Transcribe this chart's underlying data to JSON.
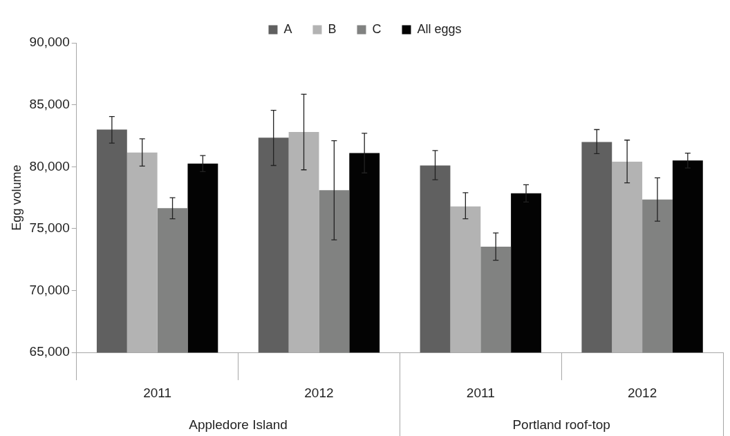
{
  "chart_data": {
    "type": "bar",
    "ylabel": "Egg volume",
    "categories": [
      "2011",
      "2012",
      "2011",
      "2012"
    ],
    "series": [
      {
        "name": "A",
        "color": "#606060",
        "values": [
          83000,
          82350,
          80100,
          82000
        ],
        "errors": [
          [
            81900,
            84050
          ],
          [
            80100,
            84550
          ],
          [
            78950,
            81300
          ],
          [
            81050,
            83000
          ]
        ]
      },
      {
        "name": "B",
        "color": "#b3b3b3",
        "values": [
          81150,
          82800,
          76800,
          80400
        ],
        "errors": [
          [
            80050,
            82250
          ],
          [
            79750,
            85850
          ],
          [
            75800,
            77900
          ],
          [
            78700,
            82150
          ]
        ]
      },
      {
        "name": "C",
        "color": "#818281",
        "values": [
          76650,
          78100,
          73550,
          77350
        ],
        "errors": [
          [
            75800,
            77500
          ],
          [
            74100,
            82100
          ],
          1100,
          [
            75600,
            79100
          ]
        ]
      },
      {
        "name": "All eggs",
        "color": "#030303",
        "values": [
          80250,
          81100,
          77850,
          80500
        ],
        "errors": [
          650,
          1600,
          700,
          600
        ]
      }
    ],
    "ylim": [
      65000,
      90000
    ],
    "yticks": [
      {
        "value": 65000,
        "label": "65,000"
      },
      {
        "value": 70000,
        "label": "70,000"
      },
      {
        "value": 75000,
        "label": "75,000"
      },
      {
        "value": 80000,
        "label": "80,000"
      },
      {
        "value": 85000,
        "label": "85,000"
      },
      {
        "value": 90000,
        "label": "90,000"
      }
    ],
    "grid": false,
    "legend": "top",
    "annotations": [
      "Appledore Island",
      "Portland roof-top"
    ]
  }
}
